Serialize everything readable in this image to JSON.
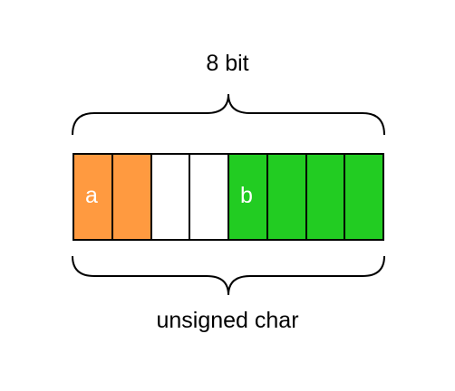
{
  "top_label": "8 bit",
  "bottom_label": "unsigned char",
  "colors": {
    "field_a": "#FF9A40",
    "field_b": "#22CC22",
    "unused": "#FFFFFF",
    "stroke": "#000000"
  },
  "bits": [
    {
      "field": "a",
      "color": "#FF9A40",
      "label": "a"
    },
    {
      "field": "a",
      "color": "#FF9A40",
      "label": ""
    },
    {
      "field": "unused",
      "color": "#FFFFFF",
      "label": ""
    },
    {
      "field": "unused",
      "color": "#FFFFFF",
      "label": ""
    },
    {
      "field": "b",
      "color": "#22CC22",
      "label": "b"
    },
    {
      "field": "b",
      "color": "#22CC22",
      "label": ""
    },
    {
      "field": "b",
      "color": "#22CC22",
      "label": ""
    },
    {
      "field": "b",
      "color": "#22CC22",
      "label": ""
    }
  ]
}
